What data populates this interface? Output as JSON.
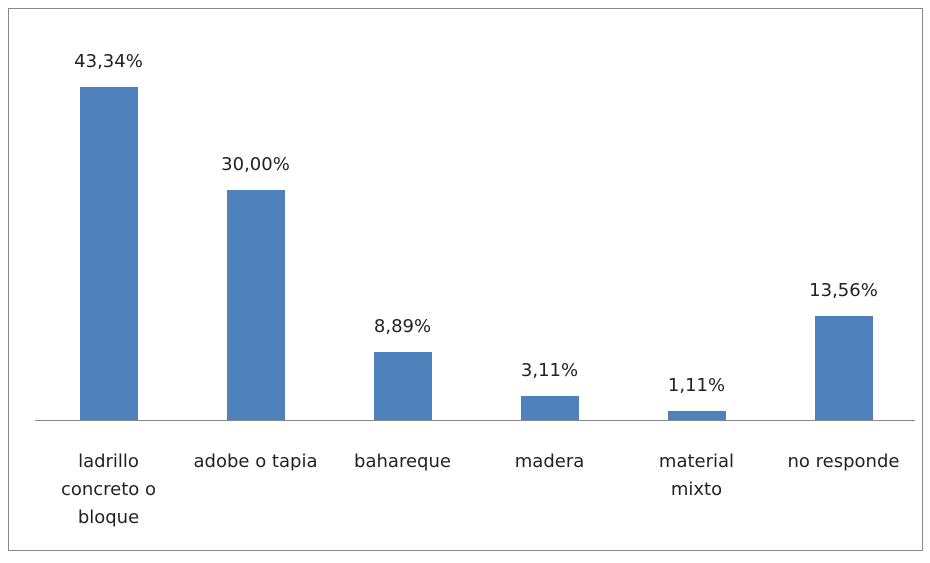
{
  "chart_data": {
    "type": "bar",
    "categories": [
      "ladrillo concreto o bloque",
      "adobe o tapia",
      "bahareque",
      "madera",
      "material mixto",
      "no responde"
    ],
    "values": [
      43.34,
      30.0,
      8.89,
      3.11,
      1.11,
      13.56
    ],
    "value_labels": [
      "43,34%",
      "30,00%",
      "8,89%",
      "3,11%",
      "1,11%",
      "13,56%"
    ],
    "color": "#4f81bd"
  }
}
